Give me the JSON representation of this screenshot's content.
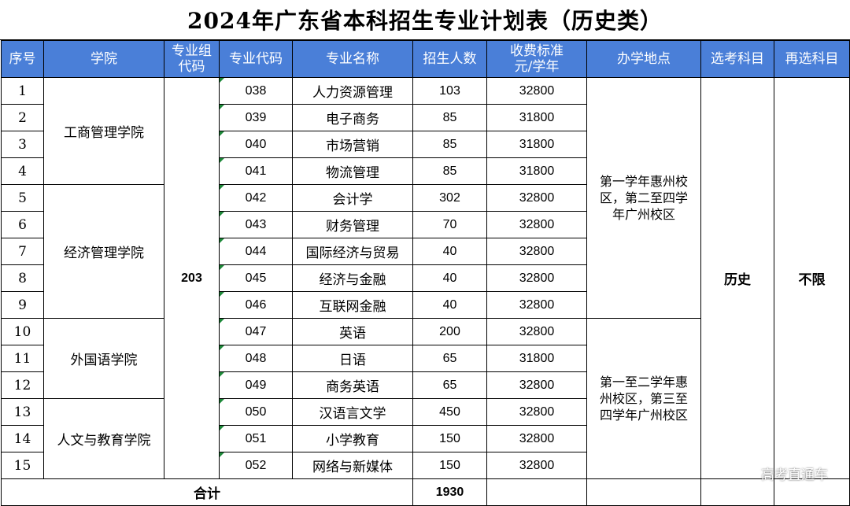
{
  "title": "2024年广东省本科招生专业计划表（历史类）",
  "headers": [
    "序号",
    "学院",
    "专业组代码",
    "专业代码",
    "专业名称",
    "招生人数",
    "收费标准元/学年",
    "办学地点",
    "选考科目",
    "再选科目"
  ],
  "header_split": {
    "group_code": [
      "专业组",
      "代码"
    ],
    "fee": [
      "收费标准",
      "元/学年"
    ]
  },
  "colleges": [
    "工商管理学院",
    "经济管理学院",
    "外国语学院",
    "人文与教育学院"
  ],
  "group_code": "203",
  "locations": [
    "第一学年惠州校区，第二至四学年广州校区",
    "第一至二学年惠州校区，第三至四学年广州校区"
  ],
  "location_lines": [
    [
      "第一学年惠州校",
      "区，第二至四学",
      "年广州校区"
    ],
    [
      "第一至二学年惠",
      "州校区，第三至",
      "四学年广州校区"
    ]
  ],
  "subject_required": "历史",
  "subject_reselect": "不限",
  "rows": [
    {
      "no": "1",
      "code": "038",
      "major": "人力资源管理",
      "enroll": "103",
      "fee": "32800"
    },
    {
      "no": "2",
      "code": "039",
      "major": "电子商务",
      "enroll": "85",
      "fee": "31800"
    },
    {
      "no": "3",
      "code": "040",
      "major": "市场营销",
      "enroll": "85",
      "fee": "31800"
    },
    {
      "no": "4",
      "code": "041",
      "major": "物流管理",
      "enroll": "85",
      "fee": "31800"
    },
    {
      "no": "5",
      "code": "042",
      "major": "会计学",
      "enroll": "302",
      "fee": "32800"
    },
    {
      "no": "6",
      "code": "043",
      "major": "财务管理",
      "enroll": "70",
      "fee": "32800"
    },
    {
      "no": "7",
      "code": "044",
      "major": "国际经济与贸易",
      "enroll": "40",
      "fee": "32800"
    },
    {
      "no": "8",
      "code": "045",
      "major": "经济与金融",
      "enroll": "40",
      "fee": "32800"
    },
    {
      "no": "9",
      "code": "046",
      "major": "互联网金融",
      "enroll": "40",
      "fee": "32800"
    },
    {
      "no": "10",
      "code": "047",
      "major": "英语",
      "enroll": "200",
      "fee": "32800"
    },
    {
      "no": "11",
      "code": "048",
      "major": "日语",
      "enroll": "65",
      "fee": "31800"
    },
    {
      "no": "12",
      "code": "049",
      "major": "商务英语",
      "enroll": "65",
      "fee": "32800"
    },
    {
      "no": "13",
      "code": "050",
      "major": "汉语言文学",
      "enroll": "450",
      "fee": "32800"
    },
    {
      "no": "14",
      "code": "051",
      "major": "小学教育",
      "enroll": "150",
      "fee": "32800"
    },
    {
      "no": "15",
      "code": "052",
      "major": "网络与新媒体",
      "enroll": "150",
      "fee": "32800"
    }
  ],
  "total_label": "合计",
  "total_enroll": "1930",
  "watermark": "高考直通车"
}
